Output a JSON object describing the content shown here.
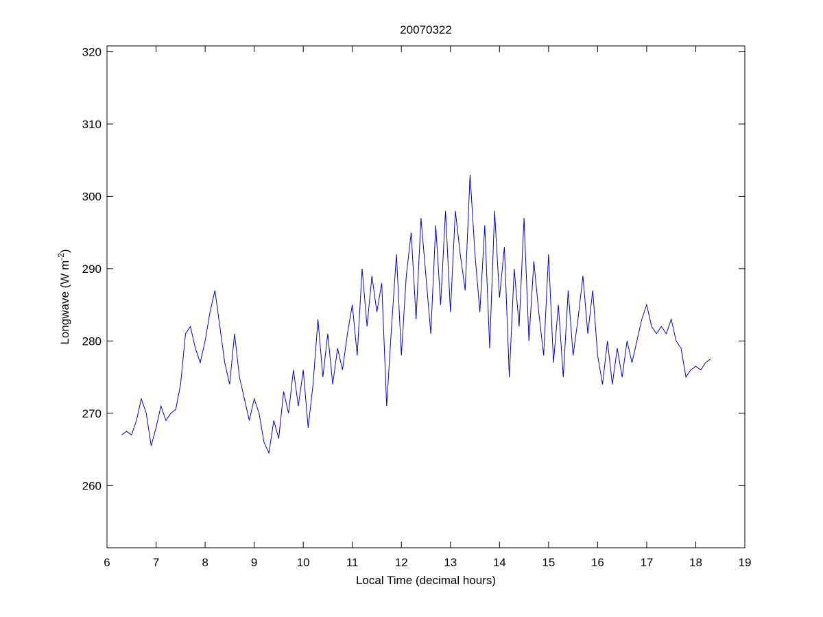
{
  "chart_data": {
    "type": "line",
    "title": "20070322",
    "xlabel": "Local Time (decimal hours)",
    "ylabel": {
      "text": "Longwave (W m",
      "superscript": "-2",
      "suffix": ")"
    },
    "xlim": [
      6,
      19
    ],
    "xticks": [
      6,
      7,
      8,
      9,
      10,
      11,
      12,
      13,
      14,
      15,
      16,
      17,
      18,
      19
    ],
    "ylim": [
      251.4,
      320.8
    ],
    "yticks": [
      260,
      270,
      280,
      290,
      300,
      310,
      320
    ],
    "grid": false,
    "series": [
      {
        "color": "#0000cc",
        "x": [
          6.3,
          6.4,
          6.5,
          6.6,
          6.7,
          6.8,
          6.9,
          7.0,
          7.1,
          7.2,
          7.3,
          7.4,
          7.5,
          7.6,
          7.7,
          7.8,
          7.9,
          8.0,
          8.1,
          8.2,
          8.3,
          8.4,
          8.5,
          8.6,
          8.7,
          8.8,
          8.9,
          9.0,
          9.1,
          9.2,
          9.3,
          9.4,
          9.5,
          9.6,
          9.7,
          9.8,
          9.9,
          10.0,
          10.1,
          10.2,
          10.3,
          10.4,
          10.5,
          10.6,
          10.7,
          10.8,
          10.9,
          11.0,
          11.1,
          11.2,
          11.3,
          11.4,
          11.5,
          11.6,
          11.7,
          11.8,
          11.9,
          12.0,
          12.1,
          12.2,
          12.3,
          12.4,
          12.5,
          12.6,
          12.7,
          12.8,
          12.9,
          13.0,
          13.1,
          13.2,
          13.3,
          13.4,
          13.5,
          13.6,
          13.7,
          13.8,
          13.9,
          14.0,
          14.1,
          14.2,
          14.3,
          14.4,
          14.5,
          14.6,
          14.7,
          14.8,
          14.9,
          15.0,
          15.1,
          15.2,
          15.3,
          15.4,
          15.5,
          15.6,
          15.7,
          15.8,
          15.9,
          16.0,
          16.1,
          16.2,
          16.3,
          16.4,
          16.5,
          16.6,
          16.7,
          16.8,
          16.9,
          17.0,
          17.1,
          17.2,
          17.3,
          17.4,
          17.5,
          17.6,
          17.7,
          17.8,
          17.9,
          18.0,
          18.1,
          18.2,
          18.3
        ],
        "values": [
          267,
          267.5,
          267,
          269,
          272,
          270,
          265.5,
          268,
          271,
          269,
          270,
          270.5,
          274,
          281,
          282,
          279,
          277,
          280,
          284,
          287,
          282,
          277,
          274,
          281,
          275,
          272,
          269,
          272,
          270,
          266,
          264.5,
          269,
          266.5,
          273,
          270,
          276,
          271,
          276,
          268,
          274,
          283,
          275,
          281,
          274,
          279,
          276,
          281,
          285,
          278,
          290,
          282,
          289,
          284,
          288,
          271,
          282,
          292,
          278,
          289,
          295,
          283,
          297,
          289,
          281,
          296,
          285,
          298,
          284,
          298,
          292,
          287,
          303,
          292,
          284,
          296,
          279,
          298,
          286,
          293,
          275,
          290,
          282,
          297,
          280,
          291,
          284,
          278,
          292,
          277,
          285,
          275,
          287,
          278,
          283,
          289,
          281,
          287,
          278,
          274,
          280,
          274,
          279,
          275,
          280,
          277,
          280,
          283,
          285,
          282,
          281,
          282,
          281,
          283,
          280,
          279,
          275,
          276,
          276.5,
          276,
          277,
          277.5
        ]
      }
    ]
  }
}
